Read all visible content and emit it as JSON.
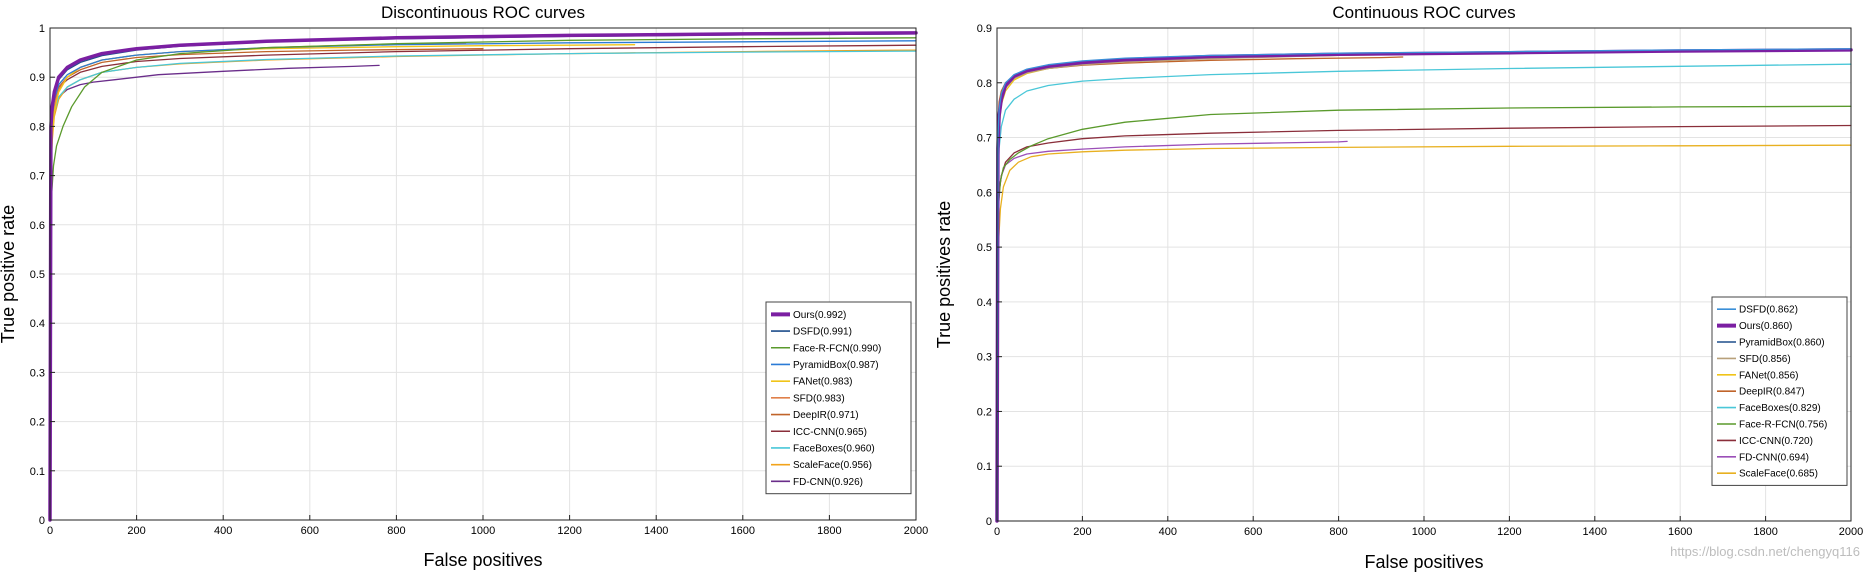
{
  "watermark": "https://blog.csdn.net/chengyq116",
  "chart_data": [
    {
      "type": "line",
      "title": "Discontinuous ROC curves",
      "xlabel": "False positives",
      "ylabel": "True positive rate",
      "xlim": [
        0,
        2000
      ],
      "ylim": [
        0,
        1
      ],
      "xticks": [
        0,
        200,
        400,
        600,
        800,
        1000,
        1200,
        1400,
        1600,
        1800,
        2000
      ],
      "yticks": [
        0,
        0.1,
        0.2,
        0.3,
        0.4,
        0.5,
        0.6,
        0.7,
        0.8,
        0.9,
        1
      ],
      "grid": true,
      "legend_position": "lower-right",
      "series": [
        {
          "name": "Ours",
          "auc": "0.992",
          "label": "Ours(0.992)",
          "color": "#7b1fa2",
          "width": 3.5,
          "x": [
            0,
            2,
            5,
            10,
            20,
            40,
            70,
            120,
            200,
            300,
            500,
            800,
            1200,
            1600,
            2000
          ],
          "y": [
            0,
            0.8,
            0.84,
            0.87,
            0.9,
            0.92,
            0.935,
            0.948,
            0.958,
            0.965,
            0.973,
            0.98,
            0.985,
            0.988,
            0.99
          ]
        },
        {
          "name": "DSFD",
          "auc": "0.991",
          "label": "DSFD(0.991)",
          "color": "#1f4e8c",
          "width": 1.3,
          "x": [
            0,
            2,
            5,
            10,
            20,
            40,
            70,
            120,
            200,
            300,
            500,
            800,
            1200,
            1600,
            2000
          ],
          "y": [
            0,
            0.78,
            0.83,
            0.865,
            0.895,
            0.915,
            0.93,
            0.944,
            0.955,
            0.963,
            0.972,
            0.978,
            0.983,
            0.986,
            0.988
          ]
        },
        {
          "name": "Face-R-FCN",
          "auc": "0.990",
          "label": "Face-R-FCN(0.990)",
          "color": "#5a9a2c",
          "width": 1.3,
          "x": [
            0,
            3,
            8,
            15,
            30,
            50,
            80,
            120,
            200,
            300,
            500,
            800,
            1200,
            1600,
            2000
          ],
          "y": [
            0,
            0.65,
            0.72,
            0.76,
            0.8,
            0.84,
            0.88,
            0.91,
            0.935,
            0.948,
            0.96,
            0.968,
            0.975,
            0.978,
            0.98
          ]
        },
        {
          "name": "PyramidBox",
          "auc": "0.987",
          "label": "PyramidBox(0.987)",
          "color": "#2b7bd6",
          "width": 1.3,
          "x": [
            0,
            2,
            5,
            10,
            20,
            40,
            70,
            120,
            200,
            300,
            500,
            800,
            1200,
            1600,
            2000
          ],
          "y": [
            0,
            0.76,
            0.82,
            0.855,
            0.885,
            0.905,
            0.92,
            0.935,
            0.945,
            0.952,
            0.96,
            0.966,
            0.97,
            0.972,
            0.974
          ]
        },
        {
          "name": "FANet",
          "auc": "0.983",
          "label": "FANet(0.983)",
          "color": "#f0c419",
          "width": 1.3,
          "x": [
            0,
            2,
            5,
            10,
            20,
            40,
            70,
            120,
            200,
            300,
            500,
            800,
            1000,
            1200,
            1350
          ],
          "y": [
            0,
            0.7,
            0.78,
            0.83,
            0.87,
            0.9,
            0.92,
            0.935,
            0.945,
            0.952,
            0.958,
            0.962,
            0.964,
            0.965,
            0.966
          ]
        },
        {
          "name": "SFD",
          "auc": "0.983",
          "label": "SFD(0.983)",
          "color": "#e0804a",
          "width": 1.3,
          "x": [
            0,
            2,
            5,
            10,
            20,
            40,
            70,
            120,
            200,
            300,
            500,
            700,
            850,
            960
          ],
          "y": [
            0,
            0.72,
            0.8,
            0.84,
            0.875,
            0.9,
            0.92,
            0.935,
            0.945,
            0.952,
            0.96,
            0.965,
            0.968,
            0.97
          ]
        },
        {
          "name": "DeepIR",
          "auc": "0.971",
          "label": "DeepIR(0.971)",
          "color": "#c0642a",
          "width": 1.3,
          "x": [
            0,
            2,
            5,
            10,
            20,
            40,
            70,
            120,
            200,
            300,
            500,
            700,
            900,
            1000
          ],
          "y": [
            0,
            0.74,
            0.81,
            0.85,
            0.88,
            0.9,
            0.915,
            0.93,
            0.94,
            0.946,
            0.952,
            0.955,
            0.957,
            0.958
          ]
        },
        {
          "name": "ICC-CNN",
          "auc": "0.965",
          "label": "ICC-CNN(0.965)",
          "color": "#8a2e3a",
          "width": 1.3,
          "x": [
            0,
            2,
            5,
            10,
            20,
            40,
            70,
            120,
            200,
            300,
            500,
            800,
            1200,
            1600,
            2000
          ],
          "y": [
            0,
            0.78,
            0.83,
            0.86,
            0.88,
            0.895,
            0.91,
            0.922,
            0.932,
            0.938,
            0.945,
            0.952,
            0.958,
            0.962,
            0.965
          ]
        },
        {
          "name": "FaceBoxes",
          "auc": "0.960",
          "label": "FaceBoxes(0.960)",
          "color": "#4ac7d8",
          "width": 1.3,
          "x": [
            0,
            2,
            5,
            10,
            20,
            40,
            70,
            120,
            200,
            300,
            500,
            800,
            1200,
            1600,
            2000
          ],
          "y": [
            0,
            0.72,
            0.79,
            0.83,
            0.86,
            0.88,
            0.895,
            0.91,
            0.92,
            0.928,
            0.936,
            0.943,
            0.948,
            0.951,
            0.953
          ]
        },
        {
          "name": "ScaleFace",
          "auc": "0.956",
          "label": "ScaleFace(0.956)",
          "color": "#f2a31b",
          "width": 1.3,
          "x": [
            0,
            2,
            5,
            10,
            20,
            40,
            70,
            120,
            200,
            300,
            500,
            800,
            1200,
            1600,
            2000
          ],
          "y": [
            0,
            0.7,
            0.77,
            0.82,
            0.855,
            0.88,
            0.895,
            0.91,
            0.92,
            0.927,
            0.935,
            0.942,
            0.948,
            0.952,
            0.955
          ]
        },
        {
          "name": "FD-CNN",
          "auc": "0.926",
          "label": "FD-CNN(0.926)",
          "color": "#6a2d8a",
          "width": 1.3,
          "x": [
            0,
            2,
            5,
            10,
            20,
            40,
            70,
            100,
            150,
            250,
            400,
            550,
            700,
            760
          ],
          "y": [
            0,
            0.74,
            0.8,
            0.84,
            0.86,
            0.875,
            0.885,
            0.89,
            0.895,
            0.905,
            0.912,
            0.918,
            0.922,
            0.924
          ]
        }
      ]
    },
    {
      "type": "line",
      "title": "Continuous ROC curves",
      "xlabel": "False positives",
      "ylabel": "True positives rate",
      "xlim": [
        0,
        2000
      ],
      "ylim": [
        0,
        0.9
      ],
      "xticks": [
        0,
        200,
        400,
        600,
        800,
        1000,
        1200,
        1400,
        1600,
        1800,
        2000
      ],
      "yticks": [
        0,
        0.1,
        0.2,
        0.3,
        0.4,
        0.5,
        0.6,
        0.7,
        0.8,
        0.9
      ],
      "grid": true,
      "legend_position": "lower-right",
      "series": [
        {
          "name": "DSFD",
          "auc": "0.862",
          "label": "DSFD(0.862)",
          "color": "#3a8fd8",
          "width": 1.3,
          "x": [
            0,
            2,
            5,
            10,
            20,
            40,
            70,
            120,
            200,
            300,
            500,
            800,
            1200,
            1600,
            2000
          ],
          "y": [
            0,
            0.7,
            0.75,
            0.78,
            0.8,
            0.815,
            0.825,
            0.833,
            0.84,
            0.845,
            0.85,
            0.854,
            0.857,
            0.86,
            0.862
          ]
        },
        {
          "name": "Ours",
          "auc": "0.860",
          "label": "Ours(0.860)",
          "color": "#7b1fa2",
          "width": 3.5,
          "x": [
            0,
            2,
            5,
            10,
            20,
            40,
            70,
            120,
            200,
            300,
            500,
            800,
            1200,
            1600,
            2000
          ],
          "y": [
            0,
            0.68,
            0.74,
            0.77,
            0.795,
            0.812,
            0.822,
            0.83,
            0.837,
            0.842,
            0.848,
            0.852,
            0.855,
            0.858,
            0.86
          ]
        },
        {
          "name": "PyramidBox",
          "auc": "0.860",
          "label": "PyramidBox(0.860)",
          "color": "#1f4e8c",
          "width": 1.3,
          "x": [
            0,
            2,
            5,
            10,
            20,
            40,
            70,
            120,
            200,
            300,
            500,
            800,
            1200,
            1600,
            2000
          ],
          "y": [
            0,
            0.69,
            0.745,
            0.775,
            0.798,
            0.814,
            0.824,
            0.832,
            0.838,
            0.843,
            0.848,
            0.852,
            0.855,
            0.858,
            0.86
          ]
        },
        {
          "name": "SFD",
          "auc": "0.856",
          "label": "SFD(0.856)",
          "color": "#b8a07a",
          "width": 1.3,
          "x": [
            0,
            2,
            5,
            10,
            20,
            40,
            70,
            120,
            200,
            300,
            500,
            700,
            850,
            950
          ],
          "y": [
            0,
            0.66,
            0.73,
            0.765,
            0.79,
            0.808,
            0.818,
            0.826,
            0.833,
            0.838,
            0.844,
            0.848,
            0.851,
            0.853
          ]
        },
        {
          "name": "FANet",
          "auc": "0.856",
          "label": "FANet(0.856)",
          "color": "#f0c419",
          "width": 1.3,
          "x": [
            0,
            2,
            5,
            10,
            20,
            40,
            70,
            120,
            200,
            300,
            500,
            800,
            1000,
            1200,
            1300
          ],
          "y": [
            0,
            0.65,
            0.72,
            0.76,
            0.785,
            0.805,
            0.817,
            0.826,
            0.834,
            0.839,
            0.845,
            0.85,
            0.852,
            0.854,
            0.855
          ]
        },
        {
          "name": "DeepIR",
          "auc": "0.847",
          "label": "DeepIR(0.847)",
          "color": "#c0642a",
          "width": 1.3,
          "x": [
            0,
            2,
            5,
            10,
            20,
            40,
            70,
            120,
            200,
            300,
            500,
            700,
            900,
            950
          ],
          "y": [
            0,
            0.72,
            0.765,
            0.785,
            0.8,
            0.812,
            0.82,
            0.826,
            0.832,
            0.836,
            0.841,
            0.844,
            0.846,
            0.847
          ]
        },
        {
          "name": "FaceBoxes",
          "auc": "0.829",
          "label": "FaceBoxes(0.829)",
          "color": "#4ac7d8",
          "width": 1.3,
          "x": [
            0,
            2,
            5,
            10,
            20,
            40,
            70,
            120,
            200,
            300,
            500,
            800,
            1200,
            1600,
            2000
          ],
          "y": [
            0,
            0.62,
            0.68,
            0.72,
            0.75,
            0.77,
            0.785,
            0.795,
            0.803,
            0.808,
            0.815,
            0.821,
            0.826,
            0.83,
            0.834
          ]
        },
        {
          "name": "Face-R-FCN",
          "auc": "0.756",
          "label": "Face-R-FCN(0.756)",
          "color": "#5a9a2c",
          "width": 1.3,
          "x": [
            0,
            3,
            8,
            15,
            30,
            50,
            80,
            120,
            200,
            300,
            500,
            800,
            1200,
            1600,
            2000
          ],
          "y": [
            0,
            0.57,
            0.62,
            0.645,
            0.66,
            0.672,
            0.685,
            0.698,
            0.715,
            0.728,
            0.742,
            0.75,
            0.754,
            0.756,
            0.757
          ]
        },
        {
          "name": "ICC-CNN",
          "auc": "0.720",
          "label": "ICC-CNN(0.720)",
          "color": "#8a2e3a",
          "width": 1.3,
          "x": [
            0,
            2,
            5,
            10,
            20,
            40,
            70,
            120,
            200,
            300,
            500,
            800,
            1200,
            1600,
            2000
          ],
          "y": [
            0,
            0.56,
            0.6,
            0.63,
            0.655,
            0.672,
            0.683,
            0.69,
            0.698,
            0.703,
            0.708,
            0.713,
            0.717,
            0.72,
            0.722
          ]
        },
        {
          "name": "FD-CNN",
          "auc": "0.694",
          "label": "FD-CNN(0.694)",
          "color": "#9b4fb8",
          "width": 1.3,
          "x": [
            0,
            2,
            5,
            10,
            20,
            40,
            70,
            120,
            200,
            300,
            500,
            650,
            800,
            820
          ],
          "y": [
            0,
            0.55,
            0.6,
            0.63,
            0.65,
            0.662,
            0.67,
            0.675,
            0.679,
            0.683,
            0.688,
            0.69,
            0.692,
            0.693
          ]
        },
        {
          "name": "ScaleFace",
          "auc": "0.685",
          "label": "ScaleFace(0.685)",
          "color": "#e8b020",
          "width": 1.3,
          "x": [
            0,
            3,
            8,
            15,
            30,
            50,
            80,
            120,
            200,
            300,
            500,
            800,
            1200,
            1600,
            2000
          ],
          "y": [
            0,
            0.5,
            0.57,
            0.61,
            0.64,
            0.655,
            0.665,
            0.67,
            0.674,
            0.677,
            0.68,
            0.682,
            0.684,
            0.685,
            0.686
          ]
        }
      ]
    }
  ]
}
